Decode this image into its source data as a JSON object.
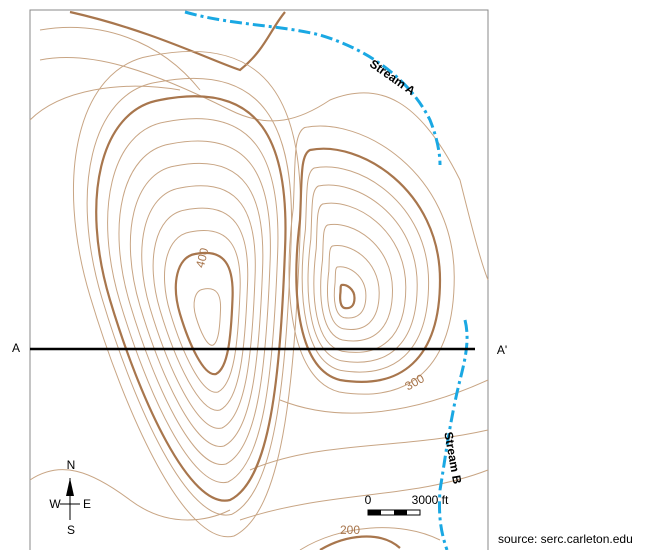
{
  "cross_section": {
    "start": "A",
    "end": "A'"
  },
  "streams": [
    "Stream A",
    "Stream B"
  ],
  "contour_labels": [
    "400",
    "300",
    "200"
  ],
  "compass": {
    "north": "N",
    "south": "S",
    "west": "W",
    "east": "E"
  },
  "scale_bar": {
    "start": "0",
    "end": "3000 ft"
  },
  "source": "source: serc.carleton.edu"
}
